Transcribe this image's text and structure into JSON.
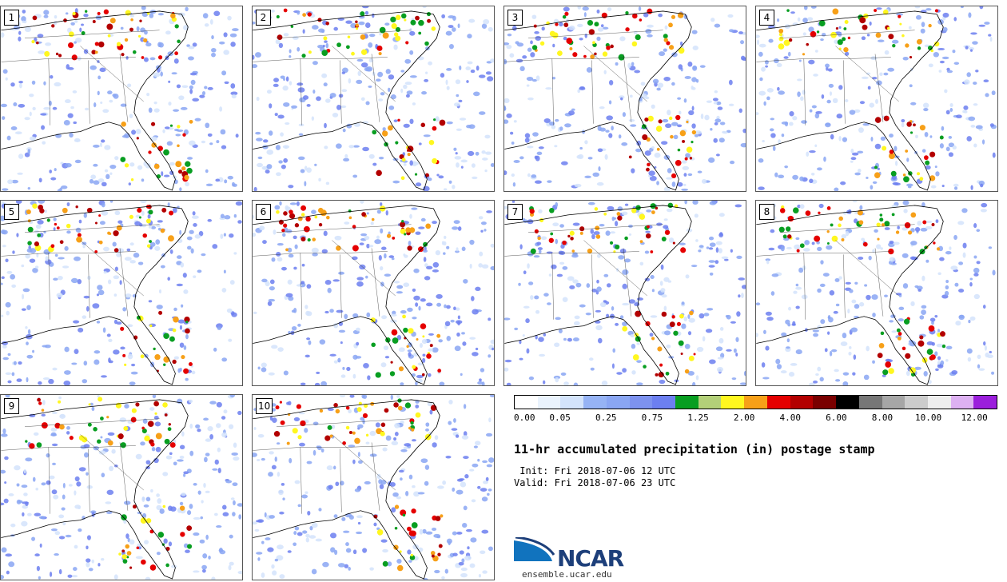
{
  "panels": [
    {
      "label": "1"
    },
    {
      "label": "2"
    },
    {
      "label": "3"
    },
    {
      "label": "4"
    },
    {
      "label": "5"
    },
    {
      "label": "6"
    },
    {
      "label": "7"
    },
    {
      "label": "8"
    },
    {
      "label": "9"
    },
    {
      "label": "10"
    }
  ],
  "colorbar": {
    "colors": [
      "#ffffff",
      "#eaf3fd",
      "#d3e3fb",
      "#96b3f5",
      "#8aa6f3",
      "#7d92ef",
      "#6c7ff0",
      "#089e21",
      "#b3d078",
      "#fff71f",
      "#f7a018",
      "#e50000",
      "#b30000",
      "#7a0000",
      "#000000",
      "#777777",
      "#a6a6a6",
      "#cccccc",
      "#eeeeee",
      "#ddb1f2",
      "#9b1fdc"
    ],
    "ticks": [
      "0.00",
      "0.05",
      "0.25",
      "0.75",
      "1.25",
      "2.00",
      "4.00",
      "6.00",
      "8.00",
      "10.00",
      "12.00"
    ]
  },
  "title": "11-hr accumulated precipitation (in) postage stamp",
  "init": " Init: Fri 2018-07-06 12 UTC",
  "valid": "Valid: Fri 2018-07-06 23 UTC",
  "logo": {
    "name": "NCAR",
    "url": "ensemble.ucar.edu"
  }
}
